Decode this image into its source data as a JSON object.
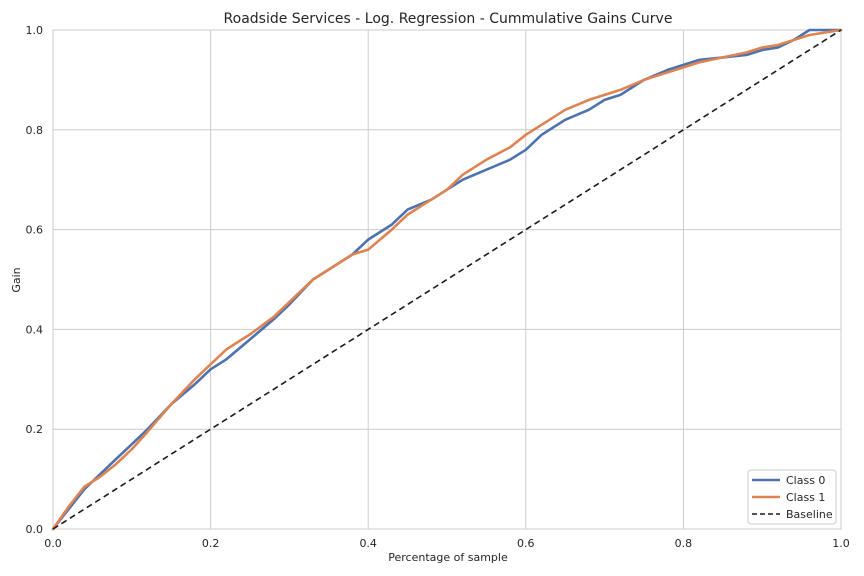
{
  "chart_data": {
    "type": "line",
    "title": "Roadside Services - Log. Regression -  Cummulative Gains Curve",
    "xlabel": "Percentage of sample",
    "ylabel": "Gain",
    "xlim": [
      0.0,
      1.0
    ],
    "ylim": [
      0.0,
      1.0
    ],
    "xticks": [
      "0.0",
      "0.2",
      "0.4",
      "0.6",
      "0.8",
      "1.0"
    ],
    "yticks": [
      "0.0",
      "0.2",
      "0.4",
      "0.6",
      "0.8",
      "1.0"
    ],
    "grid": true,
    "legend_position": "bottom-right",
    "series": [
      {
        "name": "Class 0",
        "color": "#4c72b0",
        "style": "solid",
        "x": [
          0.0,
          0.02,
          0.04,
          0.06,
          0.08,
          0.1,
          0.12,
          0.15,
          0.18,
          0.2,
          0.22,
          0.25,
          0.28,
          0.3,
          0.33,
          0.35,
          0.38,
          0.4,
          0.43,
          0.45,
          0.48,
          0.5,
          0.52,
          0.55,
          0.58,
          0.6,
          0.62,
          0.65,
          0.68,
          0.7,
          0.72,
          0.75,
          0.78,
          0.8,
          0.82,
          0.85,
          0.88,
          0.9,
          0.92,
          0.94,
          0.96,
          0.98,
          1.0
        ],
        "y": [
          0.0,
          0.04,
          0.08,
          0.11,
          0.14,
          0.17,
          0.2,
          0.25,
          0.29,
          0.32,
          0.34,
          0.38,
          0.42,
          0.45,
          0.5,
          0.52,
          0.55,
          0.58,
          0.61,
          0.64,
          0.66,
          0.68,
          0.7,
          0.72,
          0.74,
          0.76,
          0.79,
          0.82,
          0.84,
          0.86,
          0.87,
          0.9,
          0.92,
          0.93,
          0.94,
          0.945,
          0.95,
          0.96,
          0.965,
          0.98,
          1.0,
          1.0,
          1.0
        ]
      },
      {
        "name": "Class 1",
        "color": "#dd8452",
        "style": "solid",
        "x": [
          0.0,
          0.02,
          0.04,
          0.06,
          0.08,
          0.1,
          0.12,
          0.15,
          0.18,
          0.2,
          0.22,
          0.25,
          0.28,
          0.3,
          0.33,
          0.35,
          0.38,
          0.4,
          0.43,
          0.45,
          0.48,
          0.5,
          0.52,
          0.55,
          0.58,
          0.6,
          0.62,
          0.65,
          0.68,
          0.7,
          0.72,
          0.75,
          0.78,
          0.8,
          0.82,
          0.85,
          0.88,
          0.9,
          0.92,
          0.94,
          0.96,
          0.98,
          1.0
        ],
        "y": [
          0.0,
          0.045,
          0.085,
          0.105,
          0.13,
          0.16,
          0.195,
          0.25,
          0.3,
          0.33,
          0.36,
          0.39,
          0.425,
          0.455,
          0.5,
          0.52,
          0.55,
          0.56,
          0.6,
          0.63,
          0.66,
          0.68,
          0.71,
          0.74,
          0.765,
          0.79,
          0.81,
          0.84,
          0.86,
          0.87,
          0.88,
          0.9,
          0.915,
          0.925,
          0.935,
          0.945,
          0.955,
          0.965,
          0.97,
          0.98,
          0.99,
          0.995,
          1.0
        ]
      },
      {
        "name": "Baseline",
        "color": "#1a1a1a",
        "style": "dashed",
        "x": [
          0.0,
          1.0
        ],
        "y": [
          0.0,
          1.0
        ]
      }
    ]
  }
}
